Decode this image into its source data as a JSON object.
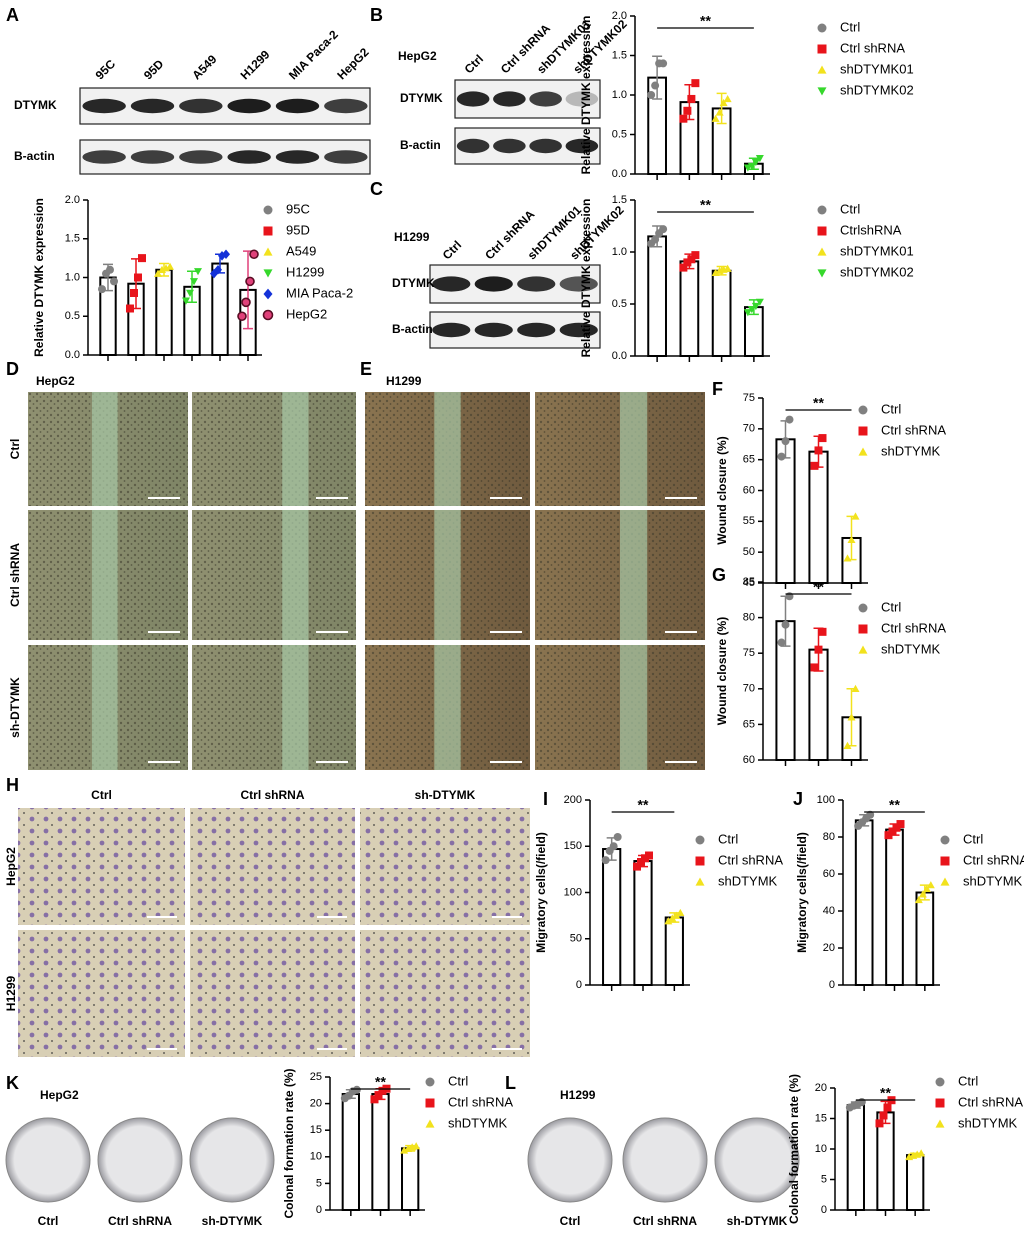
{
  "panel_labels": [
    "A",
    "B",
    "C",
    "D",
    "E",
    "F",
    "G",
    "H",
    "I",
    "J",
    "K",
    "L"
  ],
  "blots": [
    {
      "lanes": [
        "95C",
        "95D",
        "A549",
        "H1299",
        "MIA Paca-2",
        "HepG2"
      ],
      "rows": [
        "DTYMK",
        "B-actin"
      ]
    },
    {
      "cell": "HepG2",
      "lanes": [
        "Ctrl",
        "Ctrl shRNA",
        "shDTYMK01",
        "shDTYMK02"
      ],
      "rows": [
        "DTYMK",
        "B-actin"
      ]
    },
    {
      "cell": "H1299",
      "lanes": [
        "Ctrl",
        "Ctrl shRNA",
        "shDTYMK01",
        "shDTYMK02"
      ],
      "rows": [
        "DTYMK",
        "B-actin"
      ]
    }
  ],
  "wound_images": [
    {
      "cell": "HepG2",
      "rows": [
        "Ctrl",
        "Ctrl shRNA",
        "sh-DTYMK"
      ]
    },
    {
      "cell": "H1299"
    }
  ],
  "transwell": {
    "columns": [
      "Ctrl",
      "Ctrl shRNA",
      "sh-DTYMK"
    ],
    "rows": [
      "HepG2",
      "H1299"
    ]
  },
  "colony": [
    {
      "cell": "HepG2",
      "dishes": [
        "Ctrl",
        "Ctrl shRNA",
        "sh-DTYMK"
      ]
    },
    {
      "cell": "H1299",
      "dishes": [
        "Ctrl",
        "Ctrl shRNA",
        "sh-DTYMK"
      ]
    }
  ],
  "chart_data": [
    {
      "type": "bar",
      "ylabel": "Relative DTYMK expression",
      "categories": [
        "95C",
        "95D",
        "A549",
        "H1299",
        "MIA Paca-2",
        "HepG2"
      ],
      "values": [
        1.0,
        0.92,
        1.1,
        0.88,
        1.18,
        0.84
      ],
      "errors": [
        0.17,
        0.32,
        0.08,
        0.2,
        0.12,
        0.5
      ],
      "points": [
        [
          0.85,
          1.05,
          1.1,
          0.95
        ],
        [
          0.6,
          0.8,
          1.0,
          1.25
        ],
        [
          1.05,
          1.1,
          1.12,
          1.14
        ],
        [
          0.7,
          0.8,
          0.95,
          1.08
        ],
        [
          1.05,
          1.1,
          1.28,
          1.3
        ],
        [
          0.5,
          0.68,
          0.95,
          1.3
        ]
      ],
      "colors": [
        "#808080",
        "#e8141b",
        "#f2e21d",
        "#36d82c",
        "#1432d8",
        "#e0417a"
      ],
      "markers": [
        "circle",
        "square",
        "triangle",
        "triangle-down",
        "diamond",
        "circle-outline"
      ],
      "ylim": [
        0,
        2
      ],
      "yticks": [
        {
          "value": 0,
          "label": "0.0"
        },
        {
          "value": 0.5,
          "label": "0.5"
        },
        {
          "value": 1,
          "label": "1.0"
        },
        {
          "value": 1.5,
          "label": "1.5"
        },
        {
          "value": 2,
          "label": "2.0"
        }
      ]
    },
    {
      "type": "bar",
      "ylabel": "Relative DTYMK expression",
      "annotation": "**",
      "categories": [
        "Ctrl",
        "Ctrl shRNA",
        "shDTYMK01",
        "shDTYMK02"
      ],
      "values": [
        1.22,
        0.91,
        0.83,
        0.13
      ],
      "errors": [
        0.27,
        0.22,
        0.19,
        0.07
      ],
      "points": [
        [
          1.0,
          1.12,
          1.4,
          1.4
        ],
        [
          0.7,
          0.8,
          0.95,
          1.15
        ],
        [
          0.7,
          0.78,
          0.9,
          0.95
        ],
        [
          0.08,
          0.1,
          0.15,
          0.2
        ]
      ],
      "colors": [
        "#808080",
        "#e8141b",
        "#f2e21d",
        "#36d82c"
      ],
      "markers": [
        "circle",
        "square",
        "triangle",
        "triangle-down"
      ],
      "ylim": [
        0,
        2
      ],
      "yticks": [
        {
          "value": 0,
          "label": "0.0"
        },
        {
          "value": 0.5,
          "label": "0.5"
        },
        {
          "value": 1,
          "label": "1.0"
        },
        {
          "value": 1.5,
          "label": "1.5"
        },
        {
          "value": 2,
          "label": "2.0"
        }
      ]
    },
    {
      "type": "bar",
      "ylabel": "Relative DTYMK expression",
      "annotation": "**",
      "categories": [
        "Ctrl",
        "CtrlshRNA",
        "shDTYMK01",
        "shDTYMK02"
      ],
      "values": [
        1.15,
        0.91,
        0.82,
        0.47
      ],
      "errors": [
        0.1,
        0.07,
        0.04,
        0.07
      ],
      "points": [
        [
          1.08,
          1.12,
          1.18,
          1.22
        ],
        [
          0.85,
          0.9,
          0.93,
          0.97
        ],
        [
          0.8,
          0.82,
          0.83,
          0.84
        ],
        [
          0.42,
          0.45,
          0.48,
          0.52
        ]
      ],
      "colors": [
        "#808080",
        "#e8141b",
        "#f2e21d",
        "#36d82c"
      ],
      "markers": [
        "circle",
        "square",
        "triangle",
        "triangle-down"
      ],
      "ylim": [
        0,
        1.5
      ],
      "yticks": [
        {
          "value": 0,
          "label": "0.0"
        },
        {
          "value": 0.5,
          "label": "0.5"
        },
        {
          "value": 1,
          "label": "1.0"
        },
        {
          "value": 1.5,
          "label": "1.5"
        }
      ]
    },
    {
      "type": "bar",
      "ylabel": "Wound closure (%)",
      "annotation": "**",
      "categories": [
        "Ctrl",
        "Ctrl shRNA",
        "shDTYMK"
      ],
      "values": [
        68.3,
        66.3,
        52.3
      ],
      "errors": [
        3,
        2.5,
        3.5
      ],
      "points": [
        [
          65.5,
          68,
          71.5
        ],
        [
          64,
          66.5,
          68.5
        ],
        [
          49,
          52,
          55.8
        ]
      ],
      "colors": [
        "#808080",
        "#e8141b",
        "#f2e21d"
      ],
      "markers": [
        "circle",
        "square",
        "triangle"
      ],
      "ylim": [
        45,
        75
      ],
      "yticks": [
        45,
        50,
        55,
        60,
        65,
        70,
        75
      ]
    },
    {
      "type": "bar",
      "ylabel": "Wound closure (%)",
      "annotation": "**",
      "categories": [
        "Ctrl",
        "Ctrl shRNA",
        "shDTYMK"
      ],
      "values": [
        79.5,
        75.5,
        66
      ],
      "errors": [
        3.5,
        3,
        4
      ],
      "points": [
        [
          76.5,
          79,
          83
        ],
        [
          73,
          75.5,
          78
        ],
        [
          62,
          66,
          70
        ]
      ],
      "colors": [
        "#808080",
        "#e8141b",
        "#f2e21d"
      ],
      "markers": [
        "circle",
        "square",
        "triangle"
      ],
      "ylim": [
        60,
        85
      ],
      "yticks": [
        60,
        65,
        70,
        75,
        80,
        85
      ]
    },
    {
      "type": "bar",
      "ylabel": "Migratory cells(/field)",
      "annotation": "**",
      "categories": [
        "Ctrl",
        "Ctrl shRNA",
        "shDTYMK"
      ],
      "values": [
        147,
        134,
        73
      ],
      "errors": [
        12,
        6,
        5
      ],
      "points": [
        [
          135,
          145,
          150,
          160
        ],
        [
          128,
          133,
          137,
          140
        ],
        [
          69,
          72,
          75,
          78
        ]
      ],
      "colors": [
        "#808080",
        "#e8141b",
        "#f2e21d"
      ],
      "markers": [
        "circle",
        "square",
        "triangle"
      ],
      "ylim": [
        0,
        200
      ],
      "yticks": [
        0,
        50,
        100,
        150,
        200
      ]
    },
    {
      "type": "bar",
      "ylabel": "Migratory cells(/field)",
      "annotation": "**",
      "categories": [
        "Ctrl",
        "Ctrl shRNA",
        "shDTYMK"
      ],
      "values": [
        89,
        84,
        50
      ],
      "errors": [
        3,
        3,
        4
      ],
      "points": [
        [
          86,
          88,
          90,
          92
        ],
        [
          81,
          83,
          85,
          87
        ],
        [
          46,
          49,
          52,
          54
        ]
      ],
      "colors": [
        "#808080",
        "#e8141b",
        "#f2e21d"
      ],
      "markers": [
        "circle",
        "square",
        "triangle"
      ],
      "ylim": [
        0,
        100
      ],
      "yticks": [
        0,
        20,
        40,
        60,
        80,
        100
      ]
    },
    {
      "type": "bar",
      "ylabel": "Colonal formation rate (%)",
      "annotation": "**",
      "categories": [
        "Ctrl",
        "Ctrl shRNA",
        "shDTYMK"
      ],
      "values": [
        21.8,
        21.8,
        11.6
      ],
      "errors": [
        0.8,
        1,
        0.5
      ],
      "points": [
        [
          21,
          21.5,
          22.3,
          22.6
        ],
        [
          20.8,
          21.6,
          22.4,
          22.8
        ],
        [
          11.2,
          11.5,
          11.8,
          12
        ]
      ],
      "colors": [
        "#808080",
        "#e8141b",
        "#f2e21d"
      ],
      "markers": [
        "circle",
        "square",
        "triangle"
      ],
      "ylim": [
        0,
        25
      ],
      "yticks": [
        0,
        5,
        10,
        15,
        20,
        25
      ]
    },
    {
      "type": "bar",
      "ylabel": "Colonal formation rate (%)",
      "annotation": "**",
      "categories": [
        "Ctrl",
        "Ctrl shRNA",
        "shDTYMK"
      ],
      "values": [
        17.2,
        16,
        9
      ],
      "errors": [
        0.5,
        1.8,
        0.3
      ],
      "points": [
        [
          16.8,
          17.1,
          17.4,
          17.7
        ],
        [
          14.2,
          15.5,
          16.8,
          18
        ],
        [
          8.7,
          8.9,
          9.1,
          9.3
        ]
      ],
      "colors": [
        "#808080",
        "#e8141b",
        "#f2e21d"
      ],
      "markers": [
        "circle",
        "square",
        "triangle"
      ],
      "ylim": [
        0,
        20
      ],
      "yticks": [
        0,
        5,
        10,
        15,
        20
      ]
    }
  ]
}
